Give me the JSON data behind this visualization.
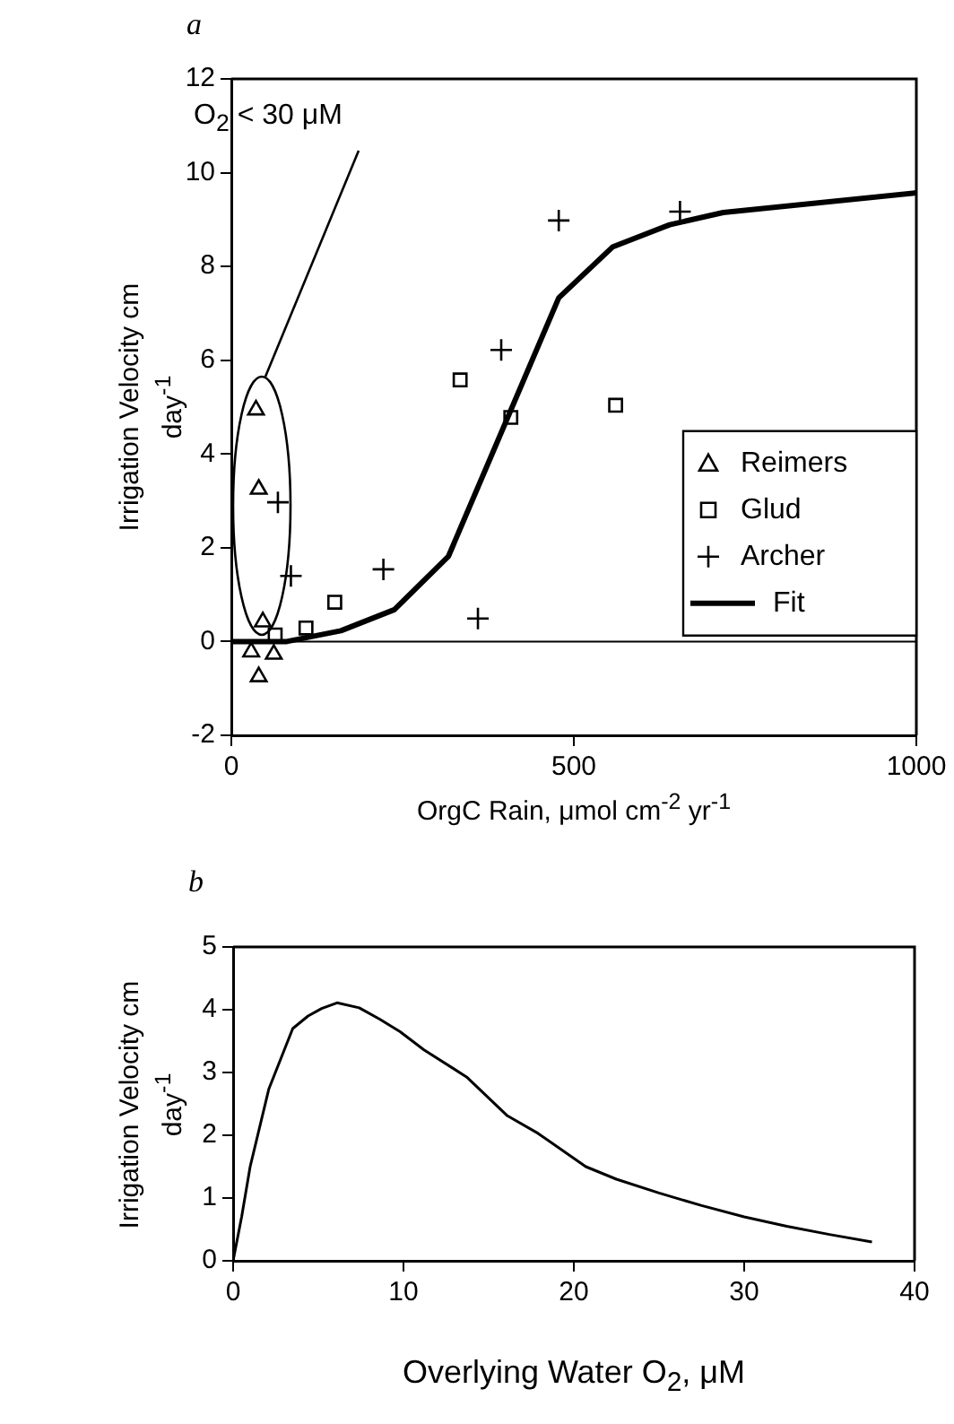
{
  "chart_data": [
    {
      "type": "scatter",
      "title": "a",
      "xlabel": "OrgC Rain, μmol cm$^{-2}$ yr$^{-1}$",
      "ylabel": "Irrigation Velocity cm day$^{-1}$",
      "annotations": [
        "O$_{2}$ < 30 μM"
      ],
      "xlim": [
        0,
        1000
      ],
      "xticks": [
        0,
        500,
        1000
      ],
      "ylim": [
        -2,
        12
      ],
      "yticks": [
        -2,
        0,
        2,
        4,
        6,
        8,
        10,
        12
      ],
      "legend": "right",
      "ref_lines": [
        {
          "axis": "y",
          "value": 0
        }
      ],
      "series": [
        {
          "name": "Reimers",
          "color": "#000000",
          "marker": "triangle",
          "x": [
            36,
            40,
            46,
            29,
            62,
            40
          ],
          "values": [
            4.94,
            3.25,
            0.42,
            -0.22,
            -0.27,
            -0.75
          ]
        },
        {
          "name": "Glud",
          "color": "#000000",
          "marker": "square",
          "x": [
            64,
            109,
            151,
            334,
            408,
            561
          ],
          "values": [
            0.14,
            0.29,
            0.84,
            5.58,
            4.78,
            5.04
          ]
        },
        {
          "name": "Archer",
          "color": "#000000",
          "marker": "cross",
          "x": [
            68,
            87,
            222,
            360,
            394,
            478,
            655
          ],
          "values": [
            2.97,
            1.4,
            1.54,
            0.49,
            6.22,
            8.98,
            9.17
          ]
        },
        {
          "name": "Fit",
          "type": "line",
          "color": "#000000",
          "marker": "none",
          "line_style": "solid",
          "x": [
            0,
            81,
            160,
            238,
            317,
            478,
            557,
            640,
            718,
            1000
          ],
          "values": [
            0,
            0,
            0.23,
            0.68,
            1.82,
            7.33,
            8.42,
            8.89,
            9.15,
            9.57
          ]
        }
      ]
    },
    {
      "type": "line",
      "title": "b",
      "xlabel": "Overlying Water O$_{2}$, μM",
      "ylabel": "Irrigation Velocity cm day$^{-1}$",
      "xlim": [
        0,
        40
      ],
      "xticks": [
        0,
        10,
        20,
        30,
        40
      ],
      "ylim": [
        0,
        5
      ],
      "yticks": [
        0,
        1,
        2,
        3,
        4,
        5
      ],
      "marker": "none",
      "line_style": "solid",
      "color": "#000000",
      "x": [
        0,
        0.5,
        1,
        2.1,
        3.5,
        4.4,
        5.2,
        6.1,
        7.4,
        8.6,
        9.8,
        11.2,
        13.7,
        16.1,
        17.9,
        20.7,
        22.5,
        25,
        27.5,
        30,
        32.5,
        35,
        37.5
      ],
      "values": [
        0,
        0.7,
        1.5,
        2.74,
        3.7,
        3.9,
        4.02,
        4.11,
        4.03,
        3.85,
        3.65,
        3.36,
        2.93,
        2.31,
        2.03,
        1.5,
        1.3,
        1.08,
        0.88,
        0.7,
        0.55,
        0.42,
        0.3
      ]
    }
  ]
}
